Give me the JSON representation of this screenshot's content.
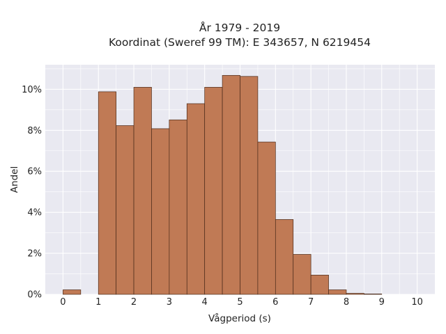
{
  "chart_data": {
    "type": "bar",
    "title_lines": [
      "År 1979 - 2019",
      "Koordinat (Sweref 99 TM): E 343657, N 6219454"
    ],
    "xlabel": "Vågperiod (s)",
    "ylabel": "Andel",
    "x_ticks": [
      0,
      1,
      2,
      3,
      4,
      5,
      6,
      7,
      8,
      9,
      10
    ],
    "y_ticks": [
      "0%",
      "2%",
      "4%",
      "6%",
      "8%",
      "10%"
    ],
    "xlim": [
      -0.5,
      10.5
    ],
    "ylim": [
      0,
      11.2
    ],
    "bin_width": 0.5,
    "bins": [
      {
        "x0": 0.0,
        "value": 0.22
      },
      {
        "x0": 0.5,
        "value": 0.0
      },
      {
        "x0": 1.0,
        "value": 9.88
      },
      {
        "x0": 1.5,
        "value": 8.23
      },
      {
        "x0": 2.0,
        "value": 10.1
      },
      {
        "x0": 2.5,
        "value": 8.08
      },
      {
        "x0": 3.0,
        "value": 8.51
      },
      {
        "x0": 3.5,
        "value": 9.3
      },
      {
        "x0": 4.0,
        "value": 10.1
      },
      {
        "x0": 4.5,
        "value": 10.68
      },
      {
        "x0": 5.0,
        "value": 10.63
      },
      {
        "x0": 5.5,
        "value": 7.43
      },
      {
        "x0": 6.0,
        "value": 3.65
      },
      {
        "x0": 6.5,
        "value": 1.95
      },
      {
        "x0": 7.0,
        "value": 0.94
      },
      {
        "x0": 7.5,
        "value": 0.22
      },
      {
        "x0": 8.0,
        "value": 0.05
      },
      {
        "x0": 8.5,
        "value": 0.02
      }
    ],
    "grid": true,
    "colors": {
      "bar_fill": "#c07a55",
      "bar_edge": "#4a2a1a",
      "plot_bg": "#e9e9f1",
      "grid": "#ffffff"
    }
  }
}
